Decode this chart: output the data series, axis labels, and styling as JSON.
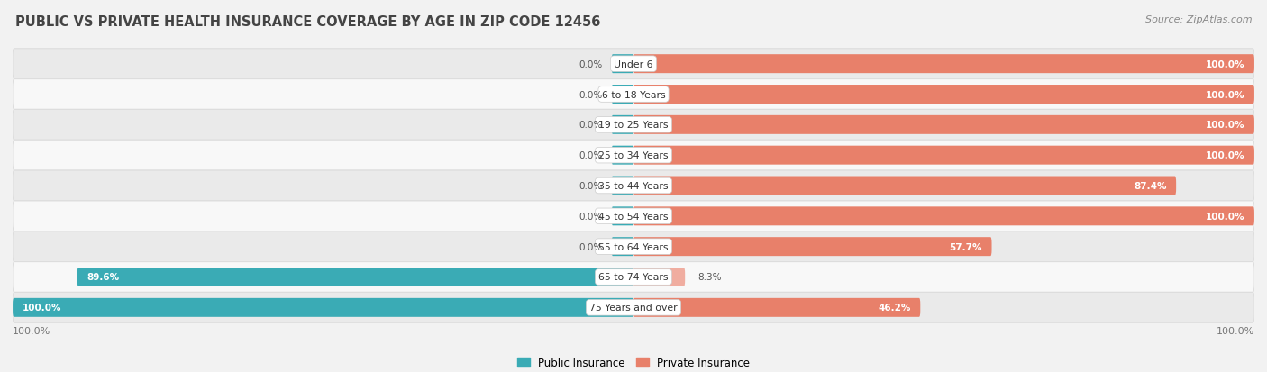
{
  "title": "PUBLIC VS PRIVATE HEALTH INSURANCE COVERAGE BY AGE IN ZIP CODE 12456",
  "source": "Source: ZipAtlas.com",
  "categories": [
    "Under 6",
    "6 to 18 Years",
    "19 to 25 Years",
    "25 to 34 Years",
    "35 to 44 Years",
    "45 to 54 Years",
    "55 to 64 Years",
    "65 to 74 Years",
    "75 Years and over"
  ],
  "public_values": [
    0.0,
    0.0,
    0.0,
    0.0,
    0.0,
    0.0,
    0.0,
    89.6,
    100.0
  ],
  "private_values": [
    100.0,
    100.0,
    100.0,
    100.0,
    87.4,
    100.0,
    57.7,
    8.3,
    46.2
  ],
  "public_color": "#3AABB5",
  "private_color_strong": "#E8806A",
  "private_color_light": "#F0ADA0",
  "bg_color": "#F2F2F2",
  "row_bg_even": "#EAEAEA",
  "row_bg_odd": "#F8F8F8",
  "row_border": "#DDDDDD",
  "label_bg": "#FFFFFF",
  "title_fontsize": 10.5,
  "source_fontsize": 8,
  "bar_height": 0.62,
  "max_value": 100.0,
  "legend_label_public": "Public Insurance",
  "legend_label_private": "Private Insurance",
  "axis_label_left": "100.0%",
  "axis_label_right": "100.0%",
  "private_light_threshold": 30
}
